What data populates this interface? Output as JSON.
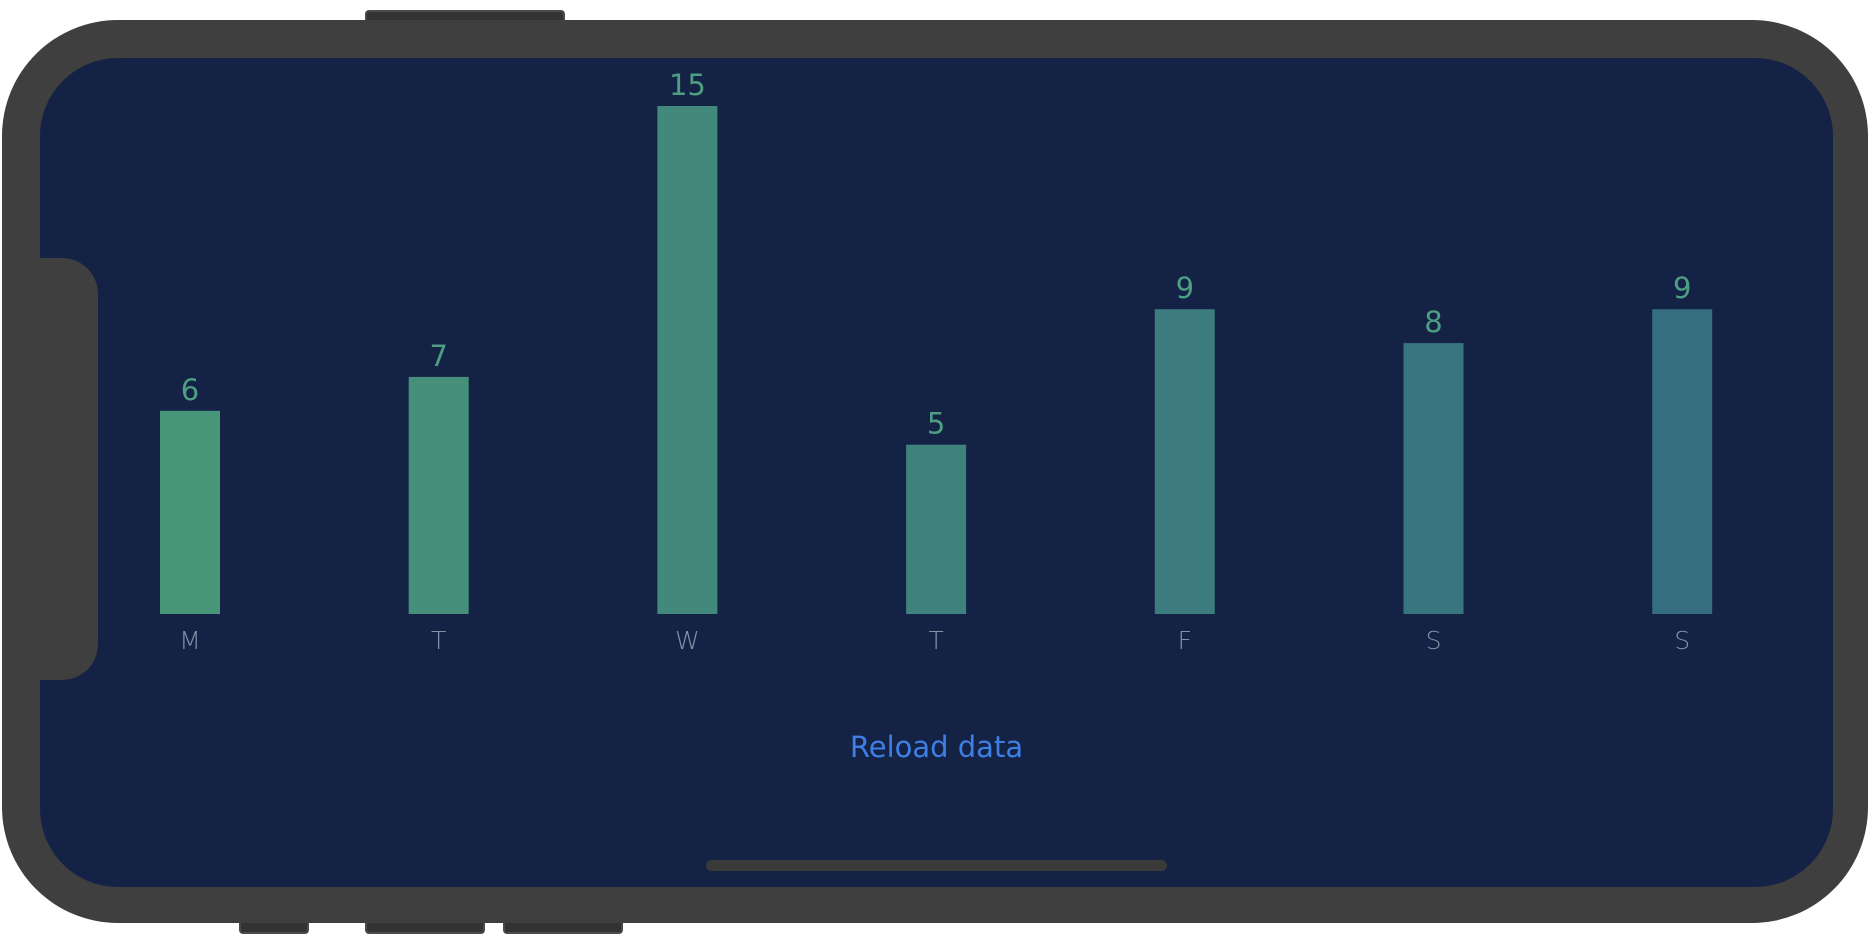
{
  "colors": {
    "screen_background": "#142245",
    "bar_gradient_start": "#48967a",
    "bar_gradient_end": "#366e80",
    "value_label": "#4d9e82",
    "day_label": "#8592a8",
    "reload_button": "#3d7fe4",
    "device_frame": "#3f3f3f"
  },
  "chart_data": {
    "type": "bar",
    "categories": [
      "M",
      "T",
      "W",
      "T",
      "F",
      "S",
      "S"
    ],
    "values": [
      6,
      7,
      15,
      5,
      9,
      8,
      9
    ],
    "title": "",
    "xlabel": "",
    "ylabel": "",
    "ylim": [
      0,
      15
    ],
    "grid": false
  },
  "actions": {
    "reload_label": "Reload data"
  }
}
